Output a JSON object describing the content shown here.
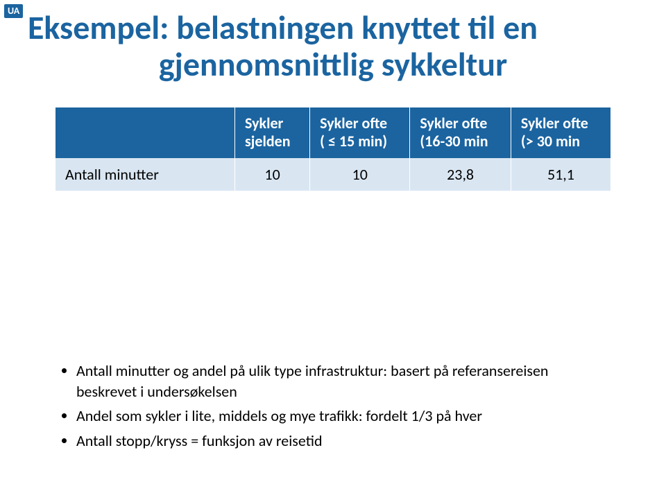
{
  "badge": {
    "text": "UA",
    "bg": "#1b64a0",
    "fg": "#ffffff"
  },
  "title": {
    "line1": "Eksempel: belastningen knyttet til en",
    "line2": "gjennomsnittlig sykkeltur",
    "color": "#1b64a0",
    "fontsize": 48,
    "fontweight": 700
  },
  "table": {
    "header_bg": "#1b64a0",
    "header_fg": "#ffffff",
    "row_bg": "#d9e6f2",
    "row_fg": "#000000",
    "header_fontsize": 22,
    "cell_fontsize": 22,
    "columns": [
      {
        "label_line1": "",
        "label_line2": ""
      },
      {
        "label_line1": "Sykler",
        "label_line2": "sjelden"
      },
      {
        "label_line1": "Sykler ofte",
        "label_line2": "( ≤ 15 min)"
      },
      {
        "label_line1": "Sykler ofte",
        "label_line2": "(16-30 min"
      },
      {
        "label_line1": "Sykler ofte",
        "label_line2": "(> 30 min"
      }
    ],
    "rows": [
      {
        "label": "Antall minutter",
        "values": [
          "10",
          "10",
          "23,8",
          "51,1"
        ]
      }
    ]
  },
  "bullets": {
    "fontsize": 22,
    "color": "#000000",
    "items": [
      "Antall minutter og andel på ulik type infrastruktur: basert på referansereisen beskrevet i undersøkelsen",
      "Andel som sykler i lite, middels og mye trafikk: fordelt 1/3 på hver",
      "Antall stopp/kryss = funksjon av reisetid"
    ]
  }
}
